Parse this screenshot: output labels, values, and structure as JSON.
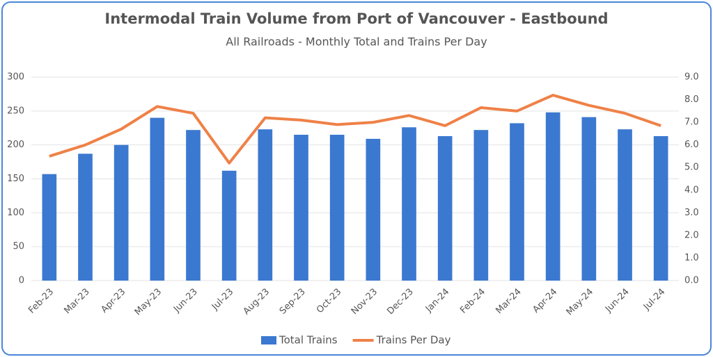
{
  "chart_data": {
    "type": "bar",
    "title": "Intermodal Train Volume from Port of Vancouver - Eastbound",
    "subtitle": "All Railroads - Monthly Total and Trains Per Day",
    "categories": [
      "Feb-23",
      "Mar-23",
      "Apr-23",
      "May-23",
      "Jun-23",
      "Jul-23",
      "Aug-23",
      "Sep-23",
      "Oct-23",
      "Nov-23",
      "Dec-23",
      "Jan-24",
      "Feb-24",
      "Mar-24",
      "Apr-24",
      "May-24",
      "Jun-24",
      "Jul-24"
    ],
    "series": [
      {
        "name": "Total Trains",
        "type": "bar",
        "color": "#3b78d0",
        "values": [
          157,
          187,
          200,
          240,
          222,
          162,
          223,
          215,
          215,
          209,
          226,
          213,
          222,
          232,
          248,
          241,
          223,
          213
        ]
      },
      {
        "name": "Trains Per Day",
        "type": "line",
        "axis": "y2",
        "color": "#ef8147",
        "values": [
          5.5,
          6.0,
          6.7,
          7.7,
          7.4,
          5.2,
          7.2,
          7.1,
          6.9,
          7.0,
          7.3,
          6.85,
          7.65,
          7.5,
          8.2,
          7.75,
          7.4,
          6.85
        ]
      }
    ],
    "ylim": [
      0,
      300
    ],
    "yticks": [
      0,
      50,
      100,
      150,
      200,
      250,
      300
    ],
    "y2lim": [
      0,
      9
    ],
    "y2ticks": [
      {
        "value": 0,
        "label": "0.0"
      },
      {
        "value": 1,
        "label": "1.0"
      },
      {
        "value": 2,
        "label": "2.0"
      },
      {
        "value": 3,
        "label": "3.0"
      },
      {
        "value": 4,
        "label": "4.0"
      },
      {
        "value": 5,
        "label": "5.0"
      },
      {
        "value": 6,
        "label": "6.0"
      },
      {
        "value": 7,
        "label": "7.0"
      },
      {
        "value": 8,
        "label": "8.0"
      },
      {
        "value": 9,
        "label": "9.0"
      }
    ],
    "grid": true,
    "legend": "bottom"
  }
}
